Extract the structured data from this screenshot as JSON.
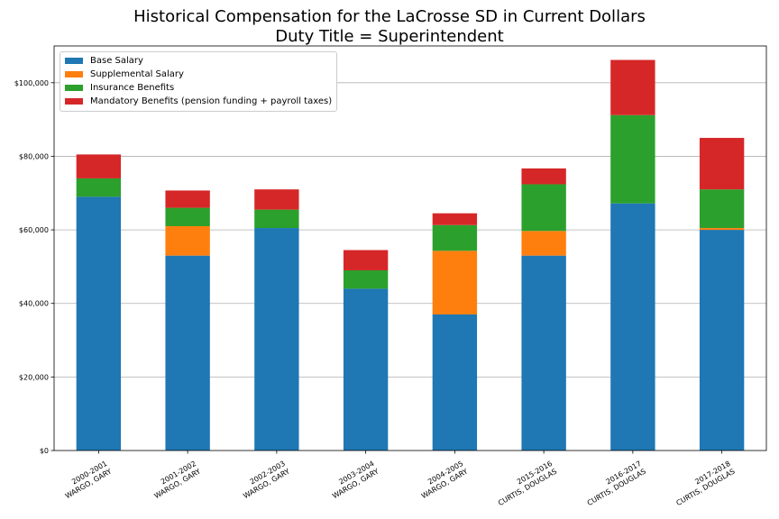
{
  "chart_data": {
    "type": "bar",
    "stacked": true,
    "title": "Historical Compensation for the LaCrosse SD in Current Dollars",
    "subtitle": "Duty Title = Superintendent",
    "categories": [
      [
        "2000-2001",
        "WARGO, GARY"
      ],
      [
        "2001-2002",
        "WARGO, GARY"
      ],
      [
        "2002-2003",
        "WARGO, GARY"
      ],
      [
        "2003-2004",
        "WARGO, GARY"
      ],
      [
        "2004-2005",
        "WARGO, GARY"
      ],
      [
        "2015-2016",
        "CURTIS, DOUGLAS"
      ],
      [
        "2016-2017",
        "CURTIS, DOUGLAS"
      ],
      [
        "2017-2018",
        "CURTIS, DOUGLAS"
      ]
    ],
    "series": [
      {
        "name": "Base Salary",
        "color": "#1f77b4",
        "values": [
          69000,
          53000,
          60500,
          44000,
          37000,
          53000,
          67200,
          60000
        ]
      },
      {
        "name": "Supplemental Salary",
        "color": "#ff7f0e",
        "values": [
          0,
          8000,
          0,
          0,
          17300,
          6700,
          0,
          500
        ]
      },
      {
        "name": "Insurance Benefits",
        "color": "#2ca02c",
        "values": [
          5000,
          5000,
          5000,
          5000,
          7000,
          12700,
          24000,
          10500
        ]
      },
      {
        "name": "Mandatory Benefits (pension funding + payroll taxes)",
        "color": "#d62728",
        "values": [
          6500,
          4700,
          5500,
          5500,
          3200,
          4300,
          15000,
          14000
        ]
      }
    ],
    "ylim": [
      0,
      110000
    ],
    "yticks": [
      0,
      20000,
      40000,
      60000,
      80000,
      100000
    ],
    "ytick_labels": [
      "$0",
      "$20,000",
      "$40,000",
      "$60,000",
      "$80,000",
      "$100,000"
    ],
    "grid": "y",
    "legend_position": "top-left"
  }
}
